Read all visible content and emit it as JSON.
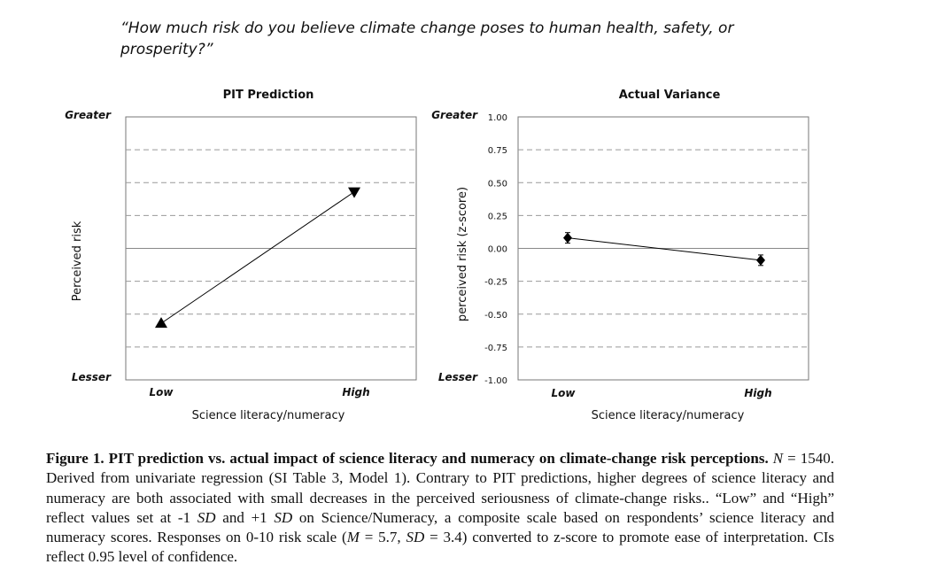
{
  "question": "“How much risk do you believe climate change poses to human health, safety, or prosperity?”",
  "chart_data": [
    {
      "type": "line",
      "title": "PIT Prediction",
      "xlabel": "Science literacy/numeracy",
      "ylabel": "Perceived risk",
      "categories": [
        "Low",
        "High"
      ],
      "y_top_label": "Greater",
      "y_bottom_label": "Lesser",
      "ylim": [
        -1,
        1
      ],
      "series": [
        {
          "values": [
            -0.57,
            0.43
          ]
        }
      ],
      "markers": [
        "triangle-up",
        "triangle-down"
      ],
      "gridlines": [
        -0.75,
        -0.5,
        -0.25,
        0.25,
        0.5,
        0.75
      ],
      "zero_line": 0
    },
    {
      "type": "line",
      "title": "Actual Variance",
      "xlabel": "Science literacy/numeracy",
      "ylabel": "perceived risk (z-score)",
      "categories": [
        "Low",
        "High"
      ],
      "y_top_label": "Greater",
      "y_bottom_label": "Lesser",
      "ylim": [
        -1,
        1
      ],
      "yticks": [
        "1.00",
        "0.75",
        "0.50",
        "0.25",
        "0.00",
        "-0.25",
        "-0.50",
        "-0.75",
        "-1.00"
      ],
      "series": [
        {
          "values": [
            0.08,
            -0.09
          ],
          "ci_low": [
            0.04,
            -0.13
          ],
          "ci_high": [
            0.12,
            -0.05
          ]
        }
      ],
      "markers": [
        "diamond",
        "diamond"
      ],
      "gridlines": [
        -0.75,
        -0.5,
        -0.25,
        0.25,
        0.5,
        0.75
      ],
      "zero_line": 0
    }
  ],
  "caption": {
    "figure_label": "Figure 1.",
    "title": " PIT prediction vs. actual impact of science literacy and numeracy on climate-change risk perceptions.",
    "n_label": "N",
    "n_text": " = 1540. Derived from univariate regression (SI Table 3, Model 1). Contrary to PIT predictions, higher degrees of science literacy and numeracy are both associated with small decreases in the perceived seriousness of climate-change risks.. “Low” and “High” reflect values set at -1 ",
    "sd1": "SD",
    "mid1": " and +1 ",
    "sd2": "SD",
    "mid2": " on Science/Numeracy, a composite scale based on respondents’ science literacy and numeracy scores. Responses on 0-10 risk scale (",
    "m_label": "M",
    "mid3": " = 5.7, ",
    "sd3": "SD",
    "tail": " = 3.4) converted to z-score to promote ease of interpretation. CIs reflect 0.95 level of confidence."
  }
}
